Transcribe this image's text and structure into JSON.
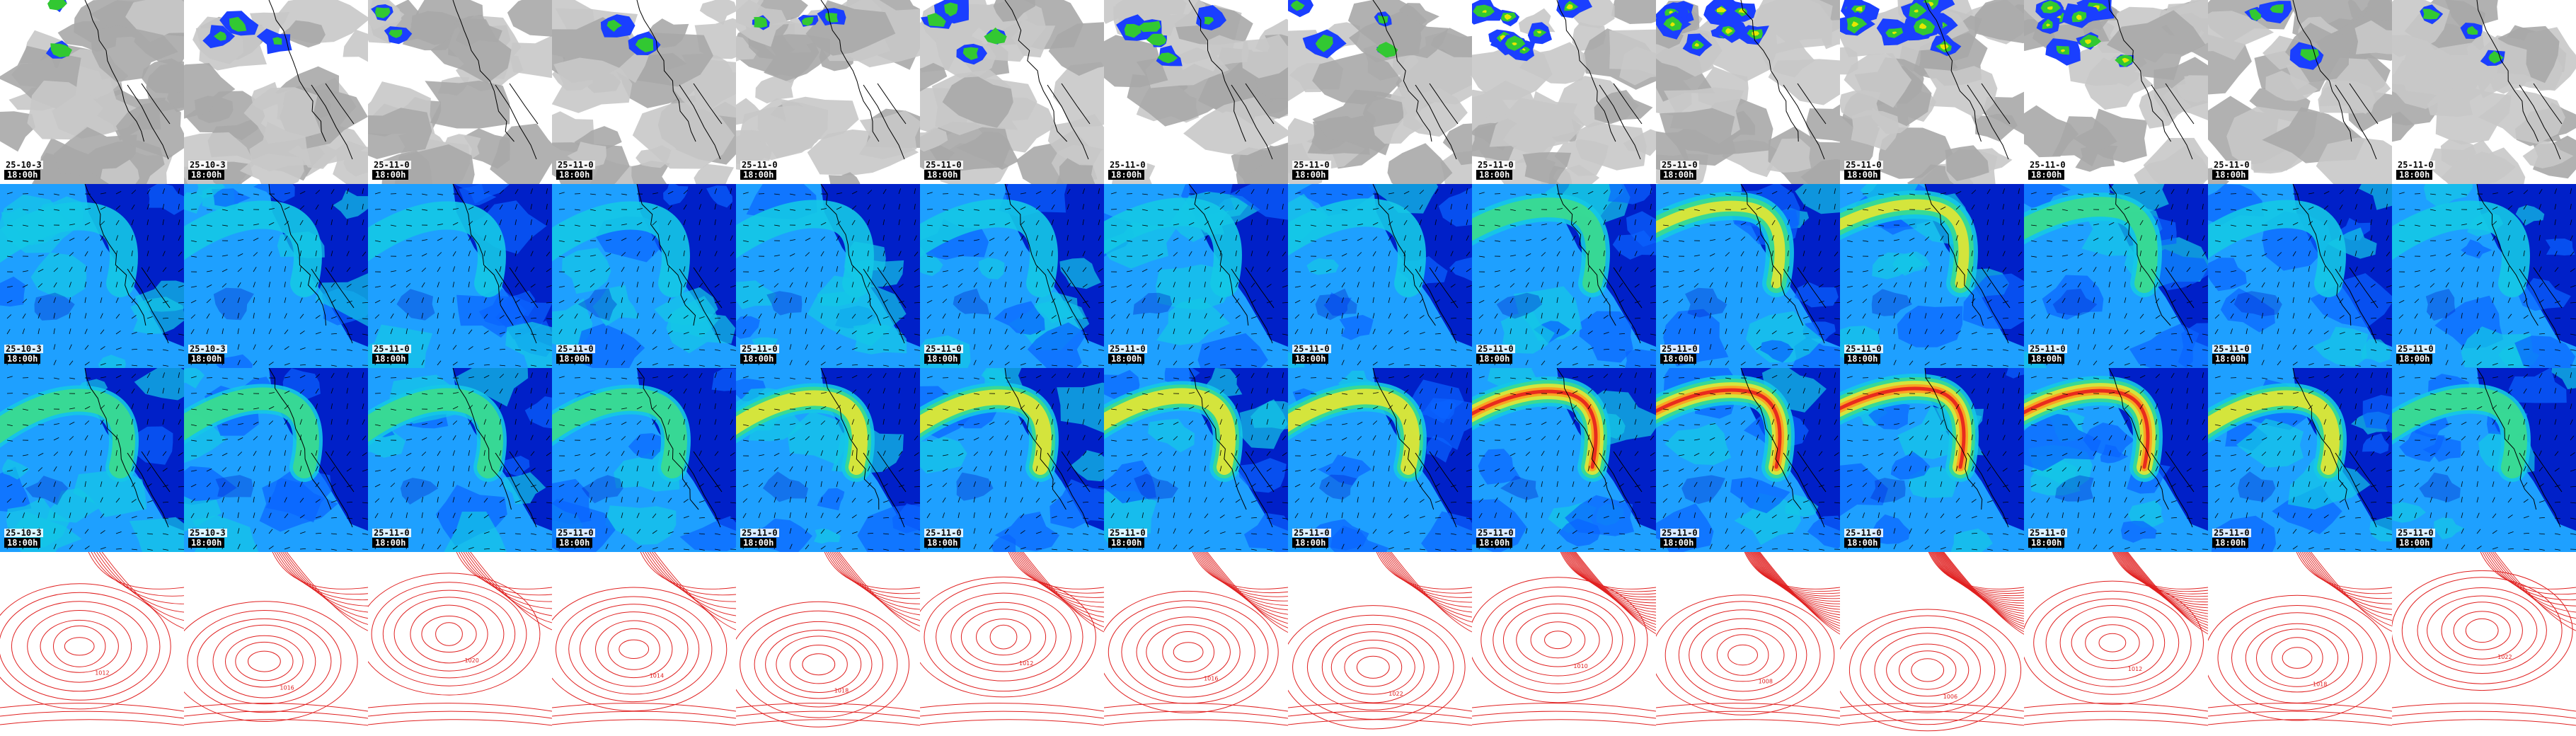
{
  "rows": [
    {
      "id": "cloud",
      "palette": {
        "bg": "#ffffff",
        "gray": "#a9a9a9",
        "light": "#c8c8c8",
        "green": "#32c832",
        "blue": "#1a3fff",
        "yellow": "#e6e600"
      }
    },
    {
      "id": "wind-low",
      "palette": {
        "deep": "#0020c8",
        "mid": "#0a64ff",
        "light": "#1ea0ff",
        "cyan": "#14c8e6",
        "green": "#3cdc8c",
        "yellow": "#e6e632"
      }
    },
    {
      "id": "wind-high",
      "palette": {
        "deep": "#0020c8",
        "mid": "#0a64ff",
        "light": "#1ea0ff",
        "cyan": "#14c8e6",
        "green": "#3cdc8c",
        "yellow": "#e6e632",
        "orange": "#ff9a1e",
        "red": "#e61e1e"
      }
    },
    {
      "id": "pressure",
      "palette": {
        "bg": "#ffffff",
        "line": "#e02020"
      }
    }
  ],
  "columns": [
    {
      "date": "25-10-3",
      "time": "18:00h"
    },
    {
      "date": "25-10-3",
      "time": "18:00h"
    },
    {
      "date": "25-11-0",
      "time": "18:00h"
    },
    {
      "date": "25-11-0",
      "time": "18:00h"
    },
    {
      "date": "25-11-0",
      "time": "18:00h"
    },
    {
      "date": "25-11-0",
      "time": "18:00h"
    },
    {
      "date": "25-11-0",
      "time": "18:00h"
    },
    {
      "date": "25-11-0",
      "time": "18:00h"
    },
    {
      "date": "25-11-0",
      "time": "18:00h"
    },
    {
      "date": "25-11-0",
      "time": "18:00h"
    },
    {
      "date": "25-11-0",
      "time": "18:00h"
    },
    {
      "date": "25-11-0",
      "time": "18:00h"
    },
    {
      "date": "25-11-0",
      "time": "18:00h"
    },
    {
      "date": "25-11-0",
      "time": "18:00h"
    }
  ],
  "intensity": [
    0.15,
    0.25,
    0.2,
    0.2,
    0.3,
    0.35,
    0.45,
    0.4,
    0.75,
    0.85,
    0.95,
    0.8,
    0.3,
    0.25
  ],
  "pressure_labels": [
    "1012",
    "1016",
    "1020",
    "1014",
    "1018",
    "1012",
    "1016",
    "1022",
    "1010",
    "1008",
    "1006",
    "1012",
    "1018",
    "1022"
  ]
}
